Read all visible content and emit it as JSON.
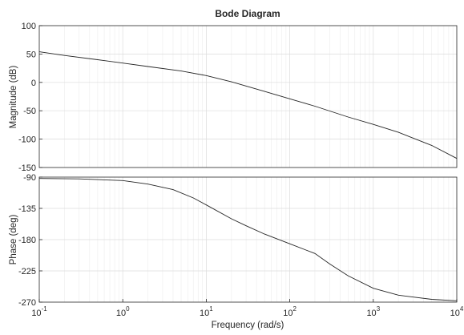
{
  "chart_data": [
    {
      "type": "line",
      "title": "Bode Diagram",
      "xlabel": "Frequency  (rad/s)",
      "ylabel": "Magnitude (dB)",
      "x_scale": "log",
      "xlim": [
        0.1,
        10000
      ],
      "ylim": [
        -150,
        100
      ],
      "y_ticks": [
        "100",
        "50",
        "0",
        "-50",
        "-100",
        "-150"
      ],
      "grid": true,
      "series": [
        {
          "x": [
            0.1,
            0.2,
            0.5,
            1,
            2,
            5,
            10,
            20,
            50,
            100,
            200,
            500,
            1000,
            2000,
            5000,
            10000
          ],
          "values": [
            54,
            47.5,
            40,
            34,
            28,
            20,
            12,
            1,
            -16,
            -29,
            -42,
            -61,
            -74,
            -88,
            -111,
            -134
          ]
        }
      ],
      "line_color": "#262626"
    },
    {
      "type": "line",
      "xlabel": "Frequency  (rad/s)",
      "ylabel": "Phase (deg)",
      "x_scale": "log",
      "xlim": [
        0.1,
        10000
      ],
      "ylim": [
        -270,
        -90
      ],
      "y_ticks": [
        "-90",
        "-135",
        "-180",
        "-225",
        "-270"
      ],
      "x_ticks": [
        {
          "base": "10",
          "exp": "-1"
        },
        {
          "base": "10",
          "exp": "0"
        },
        {
          "base": "10",
          "exp": "1"
        },
        {
          "base": "10",
          "exp": "2"
        },
        {
          "base": "10",
          "exp": "3"
        },
        {
          "base": "10",
          "exp": "4"
        }
      ],
      "grid": true,
      "series": [
        {
          "x": [
            0.1,
            0.3,
            1,
            2,
            4,
            7,
            10,
            20,
            30,
            50,
            100,
            200,
            300,
            500,
            1000,
            2000,
            5000,
            10000
          ],
          "values": [
            -92,
            -92.5,
            -95,
            -100,
            -108,
            -120,
            -130,
            -150,
            -160,
            -172,
            -186,
            -200,
            -215,
            -232,
            -250,
            -260,
            -266,
            -268
          ]
        }
      ],
      "line_color": "#262626"
    }
  ]
}
